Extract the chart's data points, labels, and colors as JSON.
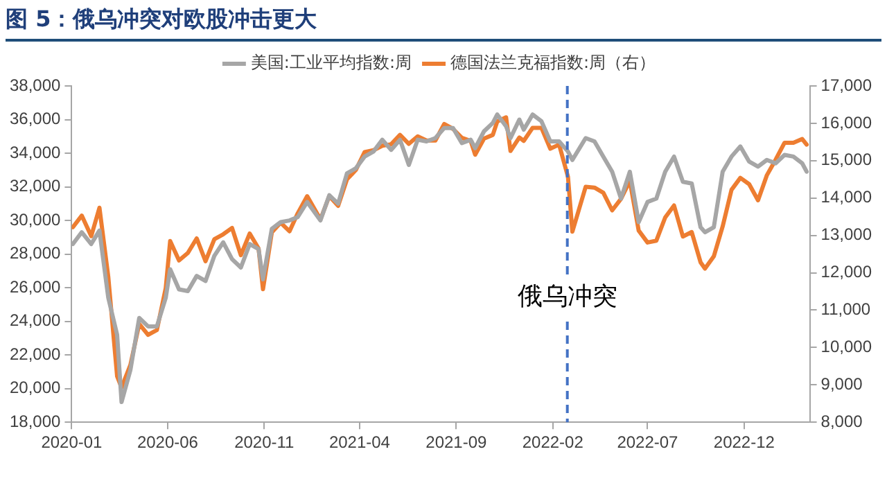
{
  "chart_data": {
    "type": "line",
    "title": "图 5：俄乌冲突对欧股冲击更大",
    "x": [
      "2020-01-03",
      "2020-01-17",
      "2020-02-01",
      "2020-02-14",
      "2020-02-28",
      "2020-03-13",
      "2020-03-20",
      "2020-04-03",
      "2020-04-17",
      "2020-05-01",
      "2020-05-15",
      "2020-05-29",
      "2020-06-05",
      "2020-06-19",
      "2020-07-03",
      "2020-07-17",
      "2020-07-31",
      "2020-08-14",
      "2020-08-28",
      "2020-09-11",
      "2020-09-25",
      "2020-10-09",
      "2020-10-23",
      "2020-10-30",
      "2020-11-13",
      "2020-11-27",
      "2020-12-11",
      "2020-12-24",
      "2021-01-08",
      "2021-01-29",
      "2021-02-12",
      "2021-02-26",
      "2021-03-12",
      "2021-03-26",
      "2021-04-09",
      "2021-04-23",
      "2021-05-07",
      "2021-05-21",
      "2021-06-04",
      "2021-06-18",
      "2021-07-02",
      "2021-07-16",
      "2021-07-30",
      "2021-08-13",
      "2021-08-27",
      "2021-09-10",
      "2021-09-24",
      "2021-10-01",
      "2021-10-15",
      "2021-10-29",
      "2021-11-05",
      "2021-11-19",
      "2021-11-26",
      "2021-12-10",
      "2021-12-17",
      "2021-12-31",
      "2022-01-14",
      "2022-01-28",
      "2022-02-11",
      "2022-02-25",
      "2022-03-04",
      "2022-03-25",
      "2022-04-08",
      "2022-04-22",
      "2022-05-06",
      "2022-05-20",
      "2022-06-03",
      "2022-06-17",
      "2022-07-01",
      "2022-07-15",
      "2022-07-29",
      "2022-08-12",
      "2022-08-26",
      "2022-09-09",
      "2022-09-23",
      "2022-09-30",
      "2022-10-14",
      "2022-10-28",
      "2022-11-11",
      "2022-11-25",
      "2022-12-09",
      "2022-12-23",
      "2023-01-06",
      "2023-01-20",
      "2023-02-03",
      "2023-02-17",
      "2023-03-03",
      "2023-03-10"
    ],
    "series": [
      {
        "name": "美国:工业平均指数:周",
        "color": "#a6a6a6",
        "values": [
          28600,
          29300,
          28600,
          29400,
          25400,
          23200,
          19200,
          21100,
          24200,
          23700,
          23700,
          25400,
          27100,
          25900,
          25800,
          26700,
          26400,
          27900,
          28700,
          27700,
          27200,
          28600,
          28300,
          26500,
          29500,
          29900,
          30000,
          30200,
          31100,
          30000,
          31500,
          31000,
          32800,
          33100,
          33800,
          34100,
          34800,
          34200,
          34800,
          33300,
          34800,
          34700,
          34900,
          35500,
          35500,
          34600,
          34800,
          34300,
          35300,
          35800,
          36300,
          35600,
          34900,
          36000,
          35400,
          36300,
          35900,
          34700,
          34700,
          34100,
          33600,
          34900,
          34700,
          33800,
          32900,
          31300,
          32900,
          29900,
          31100,
          31300,
          32900,
          33800,
          32300,
          32200,
          29600,
          29300,
          29600,
          32900,
          33800,
          34400,
          33500,
          33200,
          33600,
          33400,
          33900,
          33800,
          33400,
          32900
        ]
      },
      {
        "name": "德国法兰克福指数:周（右）",
        "color": "#ed7d31",
        "axis": "y2",
        "values": [
          13220,
          13530,
          12980,
          13740,
          11890,
          9230,
          8930,
          9530,
          10630,
          10340,
          10470,
          11590,
          12850,
          12330,
          12530,
          12920,
          12310,
          12900,
          13030,
          13200,
          12470,
          13050,
          12650,
          11560,
          13080,
          13340,
          13110,
          13590,
          14050,
          13430,
          14050,
          13790,
          14500,
          14750,
          15230,
          15280,
          15400,
          15440,
          15690,
          15450,
          15650,
          15540,
          15540,
          15980,
          15850,
          15610,
          15530,
          15160,
          15590,
          15690,
          16050,
          16160,
          15260,
          15620,
          15530,
          15880,
          15880,
          15320,
          15430,
          14570,
          13100,
          14300,
          14280,
          14140,
          13670,
          13980,
          14460,
          13130,
          12810,
          12860,
          13480,
          13800,
          12970,
          13090,
          12280,
          12110,
          12440,
          13240,
          14220,
          14540,
          14370,
          13940,
          14610,
          15030,
          15480,
          15480,
          15580,
          15430
        ]
      }
    ],
    "xlim": [
      "2020-01-01",
      "2023-03-15"
    ],
    "xticks": [
      {
        "value": "2020-01-01",
        "label": "2020-01"
      },
      {
        "value": "2020-06-01",
        "label": "2020-06"
      },
      {
        "value": "2020-11-01",
        "label": "2020-11"
      },
      {
        "value": "2021-04-01",
        "label": "2021-04"
      },
      {
        "value": "2021-09-01",
        "label": "2021-09"
      },
      {
        "value": "2022-02-01",
        "label": "2022-02"
      },
      {
        "value": "2022-07-01",
        "label": "2022-07"
      },
      {
        "value": "2022-12-01",
        "label": "2022-12"
      }
    ],
    "ylim": [
      18000,
      38000
    ],
    "yticks": [
      {
        "value": 18000,
        "label": "18,000"
      },
      {
        "value": 20000,
        "label": "20,000"
      },
      {
        "value": 22000,
        "label": "22,000"
      },
      {
        "value": 24000,
        "label": "24,000"
      },
      {
        "value": 26000,
        "label": "26,000"
      },
      {
        "value": 28000,
        "label": "28,000"
      },
      {
        "value": 30000,
        "label": "30,000"
      },
      {
        "value": 32000,
        "label": "32,000"
      },
      {
        "value": 34000,
        "label": "34,000"
      },
      {
        "value": 36000,
        "label": "36,000"
      },
      {
        "value": 38000,
        "label": "38,000"
      }
    ],
    "y2lim": [
      8000,
      17000
    ],
    "y2ticks": [
      {
        "value": 8000,
        "label": "8,000"
      },
      {
        "value": 9000,
        "label": "9,000"
      },
      {
        "value": 10000,
        "label": "10,000"
      },
      {
        "value": 11000,
        "label": "11,000"
      },
      {
        "value": 12000,
        "label": "12,000"
      },
      {
        "value": 13000,
        "label": "13,000"
      },
      {
        "value": 14000,
        "label": "14,000"
      },
      {
        "value": 15000,
        "label": "15,000"
      },
      {
        "value": 16000,
        "label": "16,000"
      },
      {
        "value": 17000,
        "label": "17,000"
      }
    ],
    "ref_lines": [
      {
        "axis": "x",
        "value": "2022-02-24",
        "label": "俄乌冲突",
        "color": "#4472c4",
        "line_style": "dashed"
      }
    ],
    "grid": false,
    "legend": "top",
    "marker": "none",
    "line_style": "solid"
  }
}
